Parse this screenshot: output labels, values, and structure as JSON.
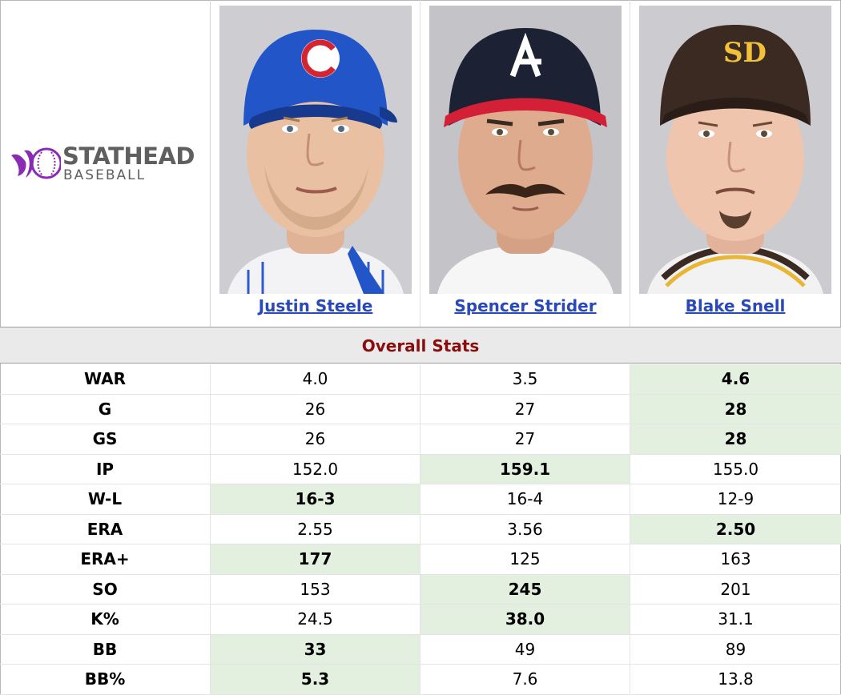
{
  "logo": {
    "line1": "STATHEAD",
    "line2": "BASEBALL",
    "accent": "#8a2bb5"
  },
  "players": [
    {
      "name": "Justin Steele",
      "team_icon": "cubs-c-icon",
      "cap_color": "#2255c8",
      "logo_color": "#d5232f"
    },
    {
      "name": "Spencer Strider",
      "team_icon": "braves-a-icon",
      "cap_color": "#1c2233",
      "logo_color": "#ffffff"
    },
    {
      "name": "Blake Snell",
      "team_icon": "padres-sd-icon",
      "cap_color": "#3a2a22",
      "logo_color": "#f2c039"
    }
  ],
  "section_title": "Overall Stats",
  "colors": {
    "section_title": "#8a0c0c",
    "link": "#2a49b8",
    "highlight": "#e3efdf"
  },
  "stats": [
    {
      "label": "WAR",
      "values": [
        "4.0",
        "3.5",
        "4.6"
      ],
      "best": 2
    },
    {
      "label": "G",
      "values": [
        "26",
        "27",
        "28"
      ],
      "best": 2
    },
    {
      "label": "GS",
      "values": [
        "26",
        "27",
        "28"
      ],
      "best": 2
    },
    {
      "label": "IP",
      "values": [
        "152.0",
        "159.1",
        "155.0"
      ],
      "best": 1
    },
    {
      "label": "W-L",
      "values": [
        "16-3",
        "16-4",
        "12-9"
      ],
      "best": 0
    },
    {
      "label": "ERA",
      "values": [
        "2.55",
        "3.56",
        "2.50"
      ],
      "best": 2
    },
    {
      "label": "ERA+",
      "values": [
        "177",
        "125",
        "163"
      ],
      "best": 0
    },
    {
      "label": "SO",
      "values": [
        "153",
        "245",
        "201"
      ],
      "best": 1
    },
    {
      "label": "K%",
      "values": [
        "24.5",
        "38.0",
        "31.1"
      ],
      "best": 1
    },
    {
      "label": "BB",
      "values": [
        "33",
        "49",
        "89"
      ],
      "best": 0
    },
    {
      "label": "BB%",
      "values": [
        "5.3",
        "7.6",
        "13.8"
      ],
      "best": 0
    }
  ]
}
